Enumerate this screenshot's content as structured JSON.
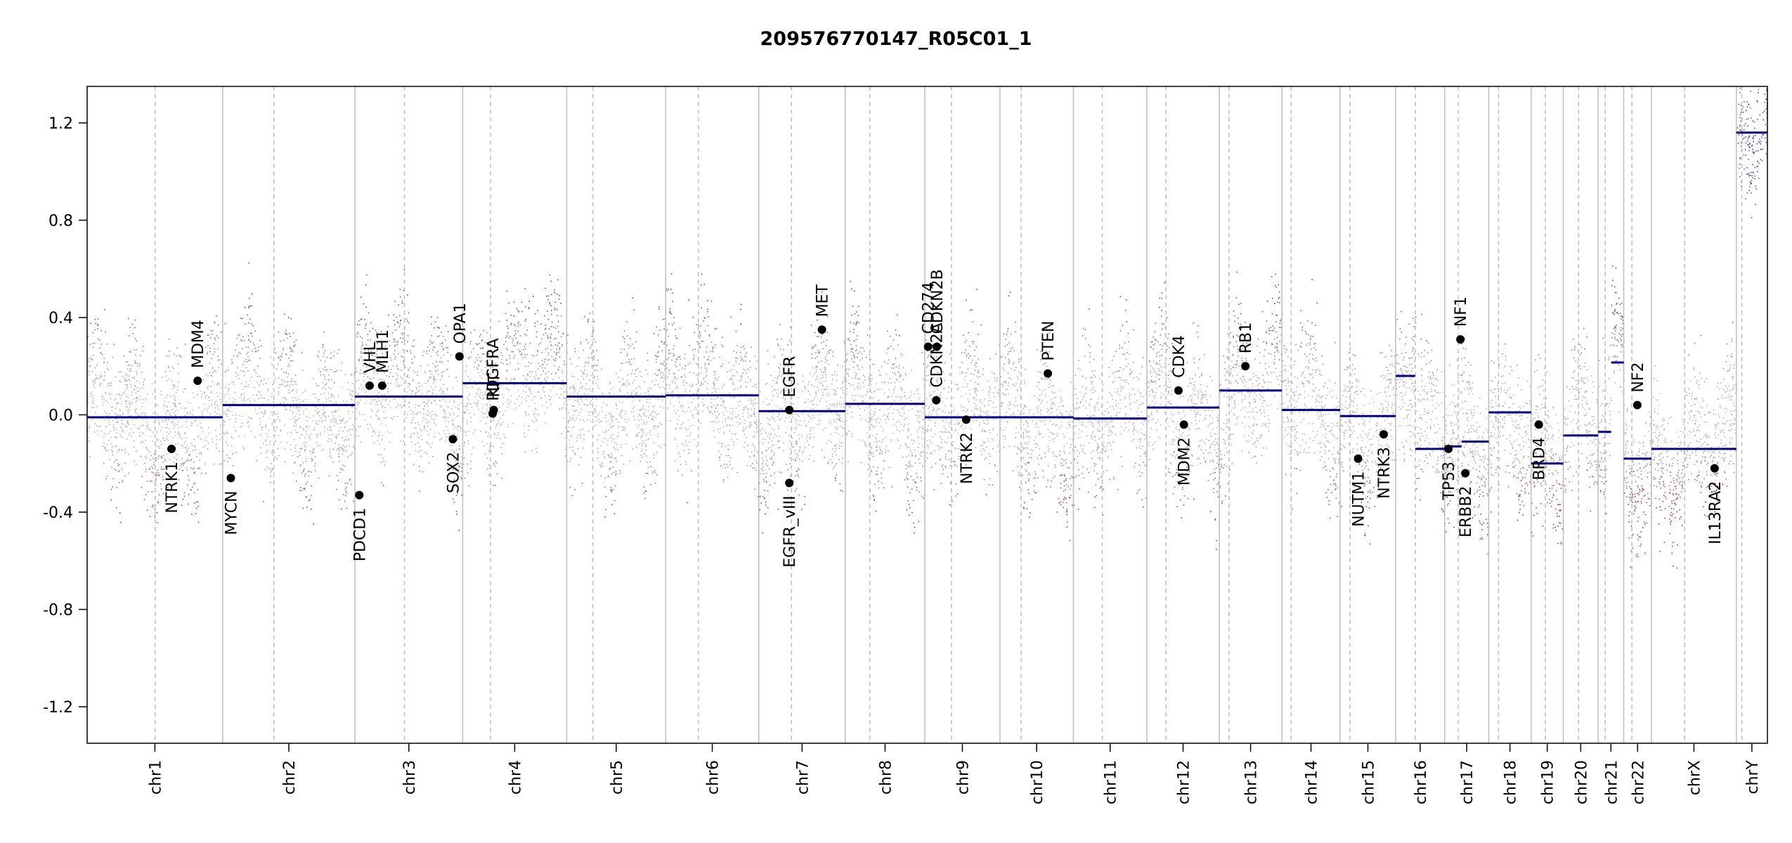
{
  "chart_data": {
    "type": "scatter",
    "title": "209576770147_R05C01_1",
    "xlabel": "",
    "ylabel": "",
    "ylim": [
      -1.35,
      1.35
    ],
    "yticks": [
      -1.2,
      -0.8,
      -0.4,
      0.0,
      0.4,
      0.8,
      1.2
    ],
    "ytick_labels": [
      "-1.2",
      "-0.8",
      "-0.4",
      "0.0",
      "0.4",
      "0.8",
      "1.2"
    ],
    "grid": false,
    "colors": {
      "gain": "#4d55b0",
      "neutral": "#b4b4b4",
      "loss": "#a63a3a",
      "segment": "#00008b",
      "boundary": "#bdbdbd",
      "gene_point": "#000000"
    },
    "chromosomes": [
      {
        "name": "chr1",
        "start": 0.0,
        "end": 249.0,
        "centromere": 125.0
      },
      {
        "name": "chr2",
        "start": 249.0,
        "end": 492.0,
        "centromere": 343.0
      },
      {
        "name": "chr3",
        "start": 492.0,
        "end": 690.0,
        "centromere": 583.0
      },
      {
        "name": "chr4",
        "start": 690.0,
        "end": 881.0,
        "centromere": 741.0
      },
      {
        "name": "chr5",
        "start": 881.0,
        "end": 1063.0,
        "centromere": 929.0
      },
      {
        "name": "chr6",
        "start": 1063.0,
        "end": 1234.0,
        "centromere": 1123.0
      },
      {
        "name": "chr7",
        "start": 1234.0,
        "end": 1393.0,
        "centromere": 1294.0
      },
      {
        "name": "chr8",
        "start": 1393.0,
        "end": 1539.0,
        "centromere": 1438.0
      },
      {
        "name": "chr9",
        "start": 1539.0,
        "end": 1677.0,
        "centromere": 1588.0
      },
      {
        "name": "chr10",
        "start": 1677.0,
        "end": 1812.0,
        "centromere": 1716.0
      },
      {
        "name": "chr11",
        "start": 1812.0,
        "end": 1947.0,
        "centromere": 1865.0
      },
      {
        "name": "chr12",
        "start": 1947.0,
        "end": 2080.0,
        "centromere": 1982.0
      },
      {
        "name": "chr13",
        "start": 2080.0,
        "end": 2195.0,
        "centromere": 2098.0
      },
      {
        "name": "chr14",
        "start": 2195.0,
        "end": 2302.0,
        "centromere": 2212.0
      },
      {
        "name": "chr15",
        "start": 2302.0,
        "end": 2404.0,
        "centromere": 2320.0
      },
      {
        "name": "chr16",
        "start": 2404.0,
        "end": 2494.0,
        "centromere": 2440.0
      },
      {
        "name": "chr17",
        "start": 2494.0,
        "end": 2575.0,
        "centromere": 2519.0
      },
      {
        "name": "chr18",
        "start": 2575.0,
        "end": 2653.0,
        "centromere": 2593.0
      },
      {
        "name": "chr19",
        "start": 2653.0,
        "end": 2712.0,
        "centromere": 2679.0
      },
      {
        "name": "chr20",
        "start": 2712.0,
        "end": 2776.0,
        "centromere": 2740.0
      },
      {
        "name": "chr21",
        "start": 2776.0,
        "end": 2823.0,
        "centromere": 2789.0
      },
      {
        "name": "chr22",
        "start": 2823.0,
        "end": 2874.0,
        "centromere": 2838.0
      },
      {
        "name": "chrX",
        "start": 2874.0,
        "end": 3030.0,
        "centromere": 2935.0
      },
      {
        "name": "chrY",
        "start": 3030.0,
        "end": 3087.0,
        "centromere": 3040.0
      }
    ],
    "segments": [
      {
        "start": 0.0,
        "end": 249.0,
        "value": -0.01
      },
      {
        "start": 249.0,
        "end": 492.0,
        "value": 0.04
      },
      {
        "start": 492.0,
        "end": 690.0,
        "value": 0.075
      },
      {
        "start": 690.0,
        "end": 881.0,
        "value": 0.13
      },
      {
        "start": 881.0,
        "end": 1063.0,
        "value": 0.075
      },
      {
        "start": 1063.0,
        "end": 1234.0,
        "value": 0.08
      },
      {
        "start": 1234.0,
        "end": 1393.0,
        "value": 0.015
      },
      {
        "start": 1393.0,
        "end": 1539.0,
        "value": 0.045
      },
      {
        "start": 1539.0,
        "end": 1677.0,
        "value": -0.01
      },
      {
        "start": 1677.0,
        "end": 1812.0,
        "value": -0.01
      },
      {
        "start": 1812.0,
        "end": 1947.0,
        "value": -0.015
      },
      {
        "start": 1947.0,
        "end": 2080.0,
        "value": 0.03
      },
      {
        "start": 2080.0,
        "end": 2195.0,
        "value": 0.1
      },
      {
        "start": 2195.0,
        "end": 2302.0,
        "value": 0.02
      },
      {
        "start": 2302.0,
        "end": 2404.0,
        "value": -0.005
      },
      {
        "start": 2404.0,
        "end": 2440.0,
        "value": 0.16
      },
      {
        "start": 2440.0,
        "end": 2494.0,
        "value": -0.14
      },
      {
        "start": 2494.0,
        "end": 2525.0,
        "value": -0.13
      },
      {
        "start": 2525.0,
        "end": 2575.0,
        "value": -0.11
      },
      {
        "start": 2575.0,
        "end": 2653.0,
        "value": 0.01
      },
      {
        "start": 2653.0,
        "end": 2712.0,
        "value": -0.2
      },
      {
        "start": 2712.0,
        "end": 2776.0,
        "value": -0.085
      },
      {
        "start": 2776.0,
        "end": 2800.0,
        "value": -0.07
      },
      {
        "start": 2800.0,
        "end": 2823.0,
        "value": 0.215
      },
      {
        "start": 2823.0,
        "end": 2874.0,
        "value": -0.18
      },
      {
        "start": 2874.0,
        "end": 3030.0,
        "value": -0.14
      },
      {
        "start": 3030.0,
        "end": 3087.0,
        "value": 1.16
      }
    ],
    "genes": [
      {
        "name": "NTRK1",
        "pos": 155.0,
        "value": -0.14,
        "label_side": "below"
      },
      {
        "name": "MDM4",
        "pos": 203.0,
        "value": 0.14,
        "label_side": "above"
      },
      {
        "name": "MYCN",
        "pos": 264.0,
        "value": -0.26,
        "label_side": "below"
      },
      {
        "name": "PDCD1",
        "pos": 500.0,
        "value": -0.33,
        "label_side": "below"
      },
      {
        "name": "VHL",
        "pos": 519.0,
        "value": 0.12,
        "label_side": "above"
      },
      {
        "name": "MLH1",
        "pos": 542.0,
        "value": 0.12,
        "label_side": "above"
      },
      {
        "name": "SOX2",
        "pos": 672.0,
        "value": -0.1,
        "label_side": "below"
      },
      {
        "name": "OPA1",
        "pos": 684.0,
        "value": 0.24,
        "label_side": "above"
      },
      {
        "name": "PDGFRA",
        "pos": 745.0,
        "value": 0.005,
        "label_side": "above"
      },
      {
        "name": "KIT",
        "pos": 747.0,
        "value": 0.02,
        "label_side": "above"
      },
      {
        "name": "EGFR",
        "pos": 1290.0,
        "value": 0.02,
        "label_side": "above"
      },
      {
        "name": "EGFR_vIII",
        "pos": 1290.0,
        "value": -0.28,
        "label_side": "below"
      },
      {
        "name": "MET",
        "pos": 1350.0,
        "value": 0.35,
        "label_side": "above"
      },
      {
        "name": "CD274",
        "pos": 1545.0,
        "value": 0.28,
        "label_side": "above"
      },
      {
        "name": "CDKN2A",
        "pos": 1560.0,
        "value": 0.06,
        "label_side": "above"
      },
      {
        "name": "CDKN2B",
        "pos": 1561.0,
        "value": 0.28,
        "label_side": "above"
      },
      {
        "name": "NTRK2",
        "pos": 1615.0,
        "value": -0.02,
        "label_side": "below"
      },
      {
        "name": "PTEN",
        "pos": 1765.0,
        "value": 0.17,
        "label_side": "above"
      },
      {
        "name": "CDK4",
        "pos": 2005.0,
        "value": 0.1,
        "label_side": "above"
      },
      {
        "name": "MDM2",
        "pos": 2015.0,
        "value": -0.04,
        "label_side": "below"
      },
      {
        "name": "RB1",
        "pos": 2128.0,
        "value": 0.2,
        "label_side": "above"
      },
      {
        "name": "NUTM1",
        "pos": 2335.0,
        "value": -0.18,
        "label_side": "below"
      },
      {
        "name": "NTRK3",
        "pos": 2382.0,
        "value": -0.08,
        "label_side": "below"
      },
      {
        "name": "TP53",
        "pos": 2501.0,
        "value": -0.14,
        "label_side": "below"
      },
      {
        "name": "NF1",
        "pos": 2523.0,
        "value": 0.31,
        "label_side": "above"
      },
      {
        "name": "ERBB2",
        "pos": 2532.0,
        "value": -0.24,
        "label_side": "below"
      },
      {
        "name": "BRD4",
        "pos": 2667.0,
        "value": -0.04,
        "label_side": "below"
      },
      {
        "name": "NF2",
        "pos": 2848.0,
        "value": 0.04,
        "label_side": "above"
      },
      {
        "name": "IL13RA2",
        "pos": 2990.0,
        "value": -0.22,
        "label_side": "below"
      }
    ]
  }
}
